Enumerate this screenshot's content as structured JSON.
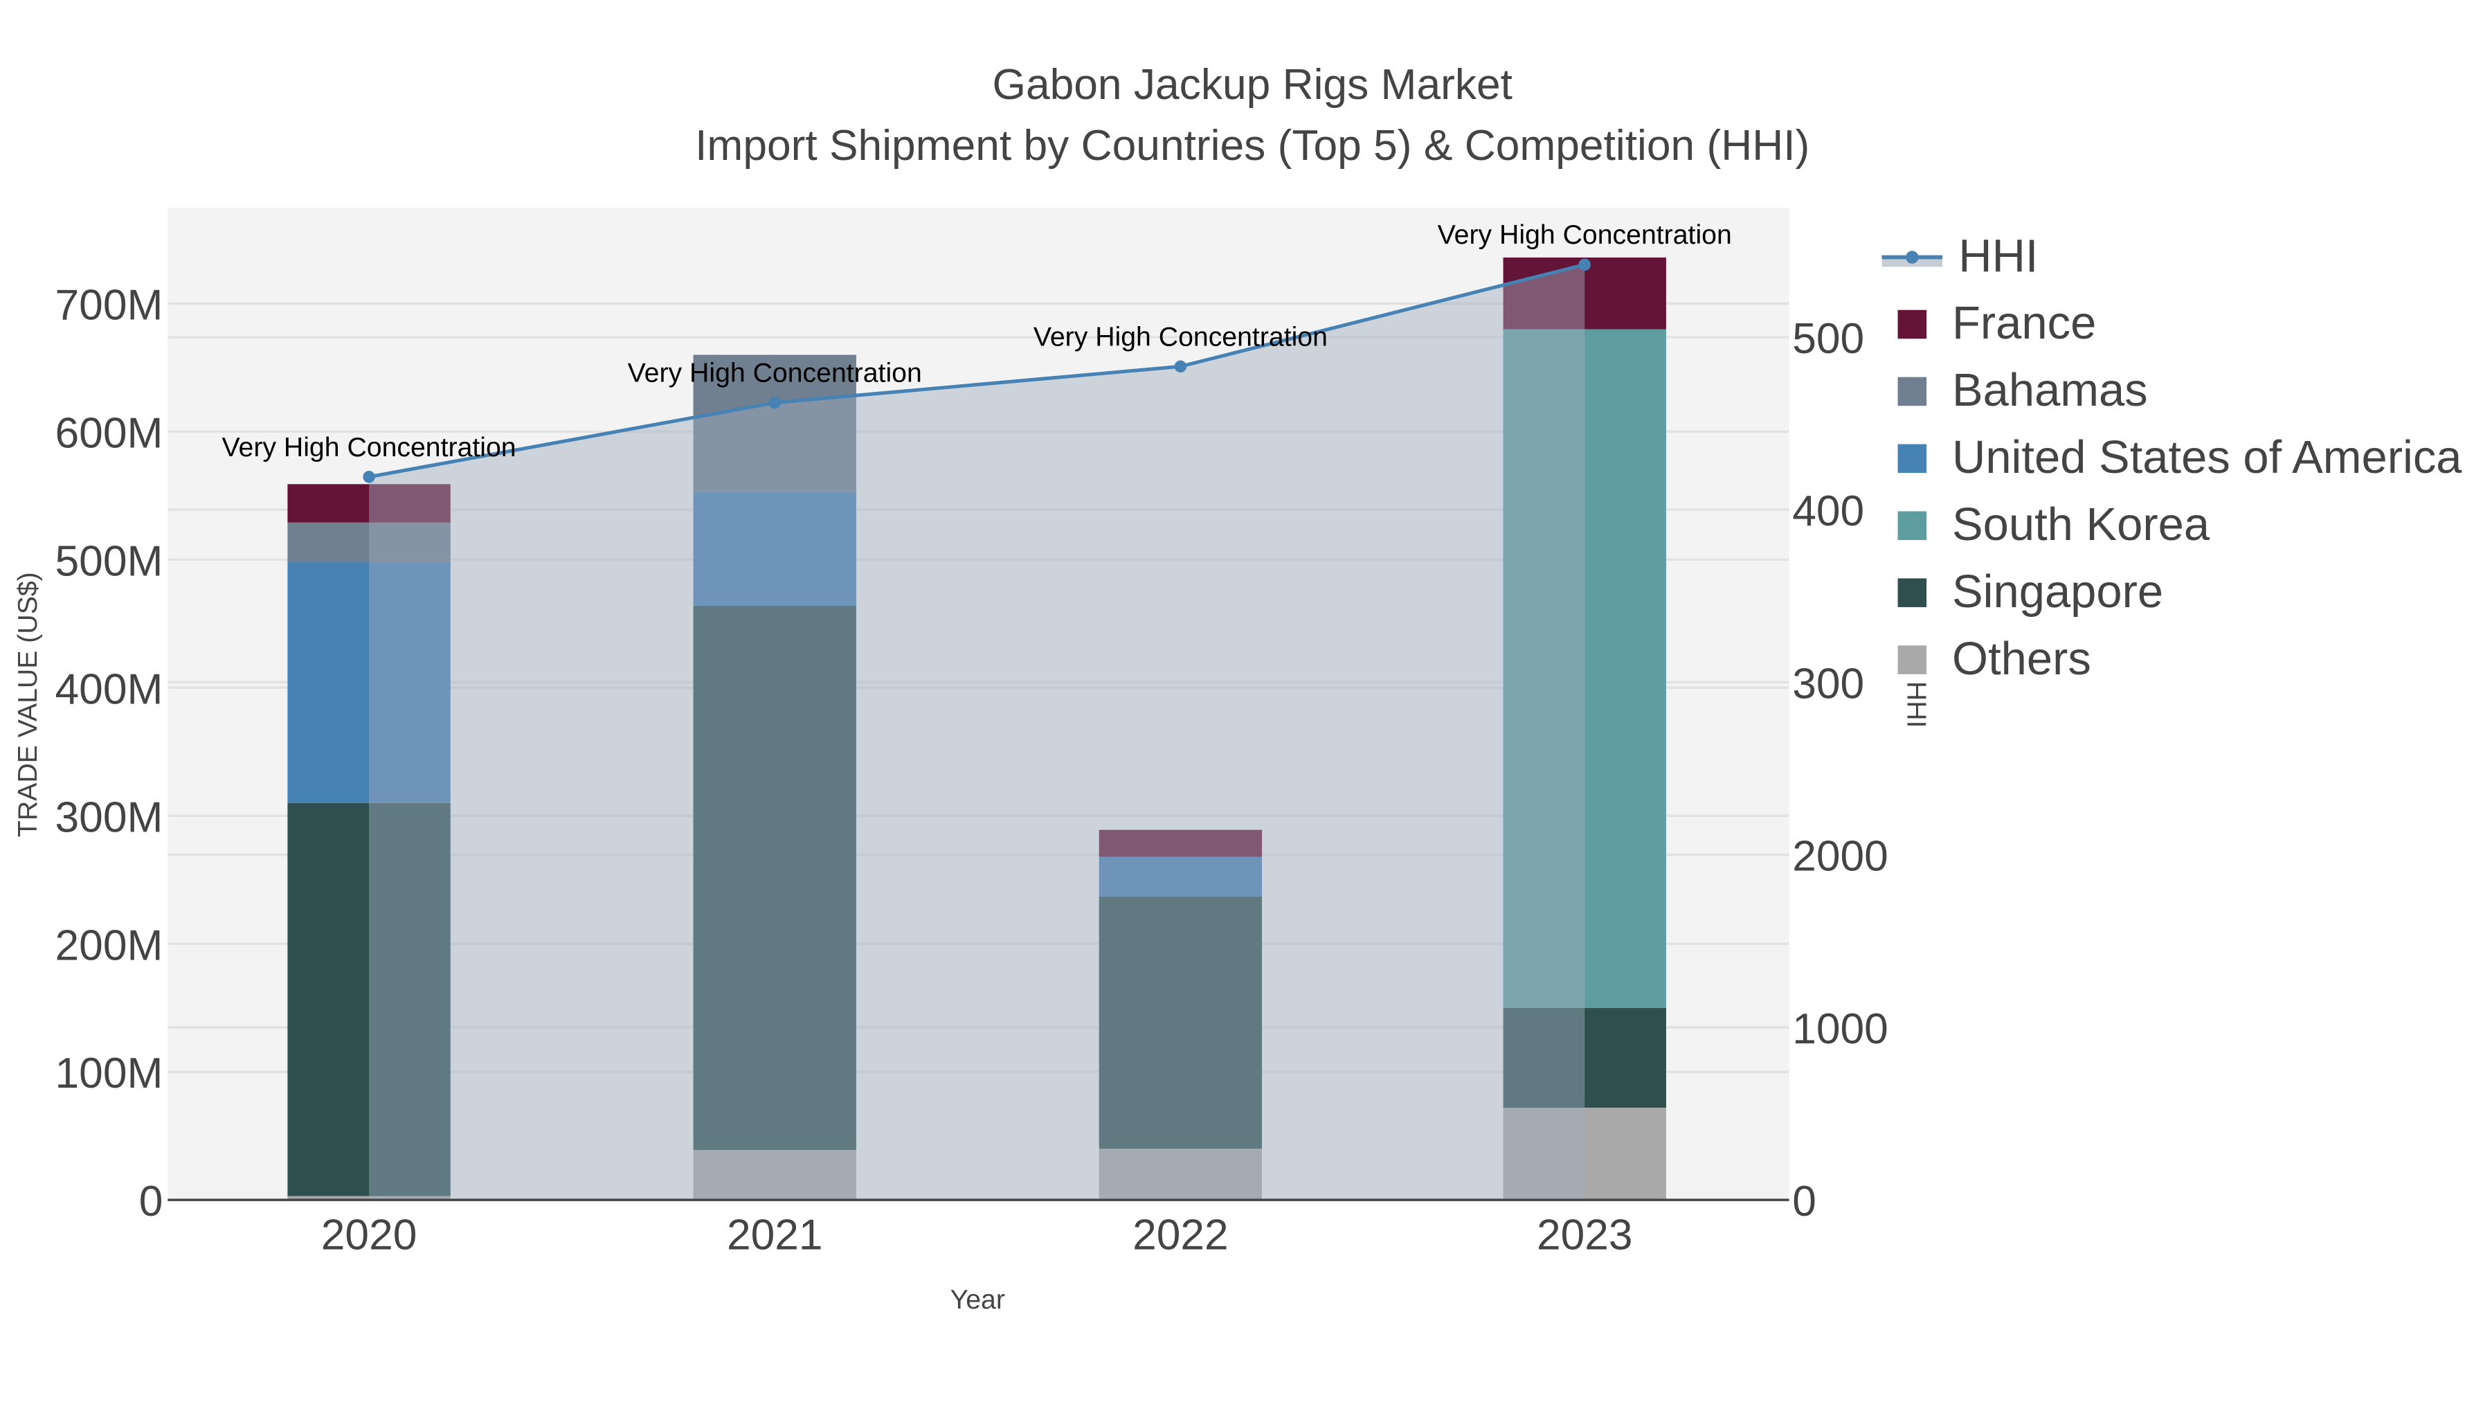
{
  "title": {
    "line1": "Gabon Jackup Rigs Market",
    "line2": "Import Shipment by Countries (Top 5) & Competition (HHI)"
  },
  "axes": {
    "x_title": "Year",
    "y_title": "TRADE VALUE (US$)",
    "y2_title": "HHI",
    "y_ticks": [
      "0",
      "100M",
      "200M",
      "300M",
      "400M",
      "500M",
      "600M",
      "700M"
    ],
    "y2_ticks_visible": [
      "0",
      "1000",
      "2000",
      "300",
      "400",
      "500"
    ]
  },
  "legend": [
    {
      "label": "HHI",
      "type": "line",
      "color": "#4682b4"
    },
    {
      "label": "France",
      "type": "bar",
      "color": "#641436"
    },
    {
      "label": "Bahamas",
      "type": "bar",
      "color": "#708090"
    },
    {
      "label": "United States of America",
      "type": "bar",
      "color": "#4682b4"
    },
    {
      "label": "South Korea",
      "type": "bar",
      "color": "#5f9ea0"
    },
    {
      "label": "Singapore",
      "type": "bar",
      "color": "#2f4f4f"
    },
    {
      "label": "Others",
      "type": "bar",
      "color": "#a9a9a9"
    }
  ],
  "annotation_text": "Very High Concentration",
  "chart_data": {
    "type": "bar",
    "title": "Gabon Jackup Rigs Market - Import Shipment by Countries (Top 5) & Competition (HHI)",
    "xlabel": "Year",
    "ylabel": "TRADE VALUE (US$)",
    "y2label": "HHI",
    "ylim": [
      0,
      775000000
    ],
    "y2lim": [
      0,
      5700
    ],
    "barmode": "stack",
    "categories": [
      "2020",
      "2021",
      "2022",
      "2023"
    ],
    "series": [
      {
        "name": "Others",
        "color": "#a9a9a9",
        "values": [
          3000000,
          39000000,
          40000000,
          72000000
        ]
      },
      {
        "name": "Singapore",
        "color": "#2f4f4f",
        "values": [
          307000000,
          425000000,
          197000000,
          78000000
        ]
      },
      {
        "name": "South Korea",
        "color": "#5f9ea0",
        "values": [
          0,
          0,
          0,
          530000000
        ]
      },
      {
        "name": "United States of America",
        "color": "#4682b4",
        "values": [
          188000000,
          89000000,
          31000000,
          0
        ]
      },
      {
        "name": "Bahamas",
        "color": "#708090",
        "values": [
          31000000,
          107000000,
          0,
          0
        ]
      },
      {
        "name": "France",
        "color": "#641436",
        "values": [
          30000000,
          0,
          21000000,
          56000000
        ]
      }
    ],
    "line_series": {
      "name": "HHI",
      "axis": "y2",
      "type": "line+area",
      "color": "#4682b4",
      "values": [
        4190,
        4620,
        4830,
        5420
      ]
    },
    "annotations": [
      "Very High Concentration",
      "Very High Concentration",
      "Very High Concentration",
      "Very High Concentration"
    ],
    "legend_position": "right",
    "grid": true
  }
}
